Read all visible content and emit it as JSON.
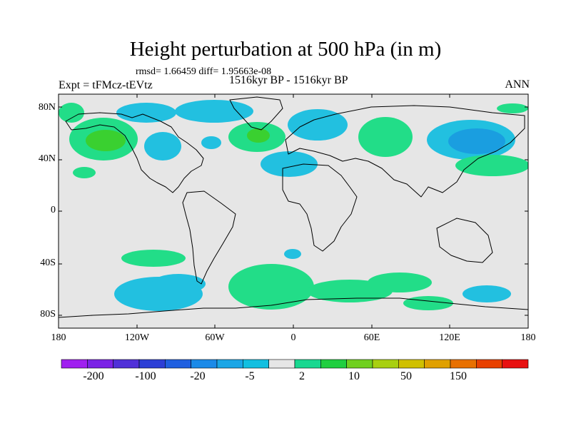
{
  "title": "Height perturbation at 500 hPa (in m)",
  "stats": "rmsd= 1.66459 diff= 1.95663e-08",
  "experiment": "Expt = tFMcz-tEVtz",
  "period": "1516kyr BP - 1516kyr BP",
  "season": "ANN",
  "lat_labels": [
    "80N",
    "40N",
    "0",
    "40S",
    "80S"
  ],
  "lon_labels": [
    "180",
    "120W",
    "60W",
    "0",
    "60E",
    "120E",
    "180"
  ],
  "colorbar": {
    "labels": [
      "-200",
      "-100",
      "-20",
      "-5",
      "2",
      "10",
      "50",
      "150"
    ],
    "colors": [
      "#a020f0",
      "#7b22e6",
      "#5030d8",
      "#2d3fd6",
      "#2060e0",
      "#1b8ae8",
      "#1ba6e6",
      "#12bfe0",
      "#e6e6e6",
      "#18d890",
      "#20cf40",
      "#70d020",
      "#a8d010",
      "#d0c000",
      "#e0a000",
      "#e87000",
      "#e84000",
      "#e81010"
    ]
  },
  "colors": {
    "background": "#e6e6e6",
    "positive_fill": "#22dd88",
    "positive_strong": "#3ad030",
    "negative_fill": "#22c0e0",
    "negative_strong": "#1a9ee0",
    "coastline": "#000000"
  }
}
